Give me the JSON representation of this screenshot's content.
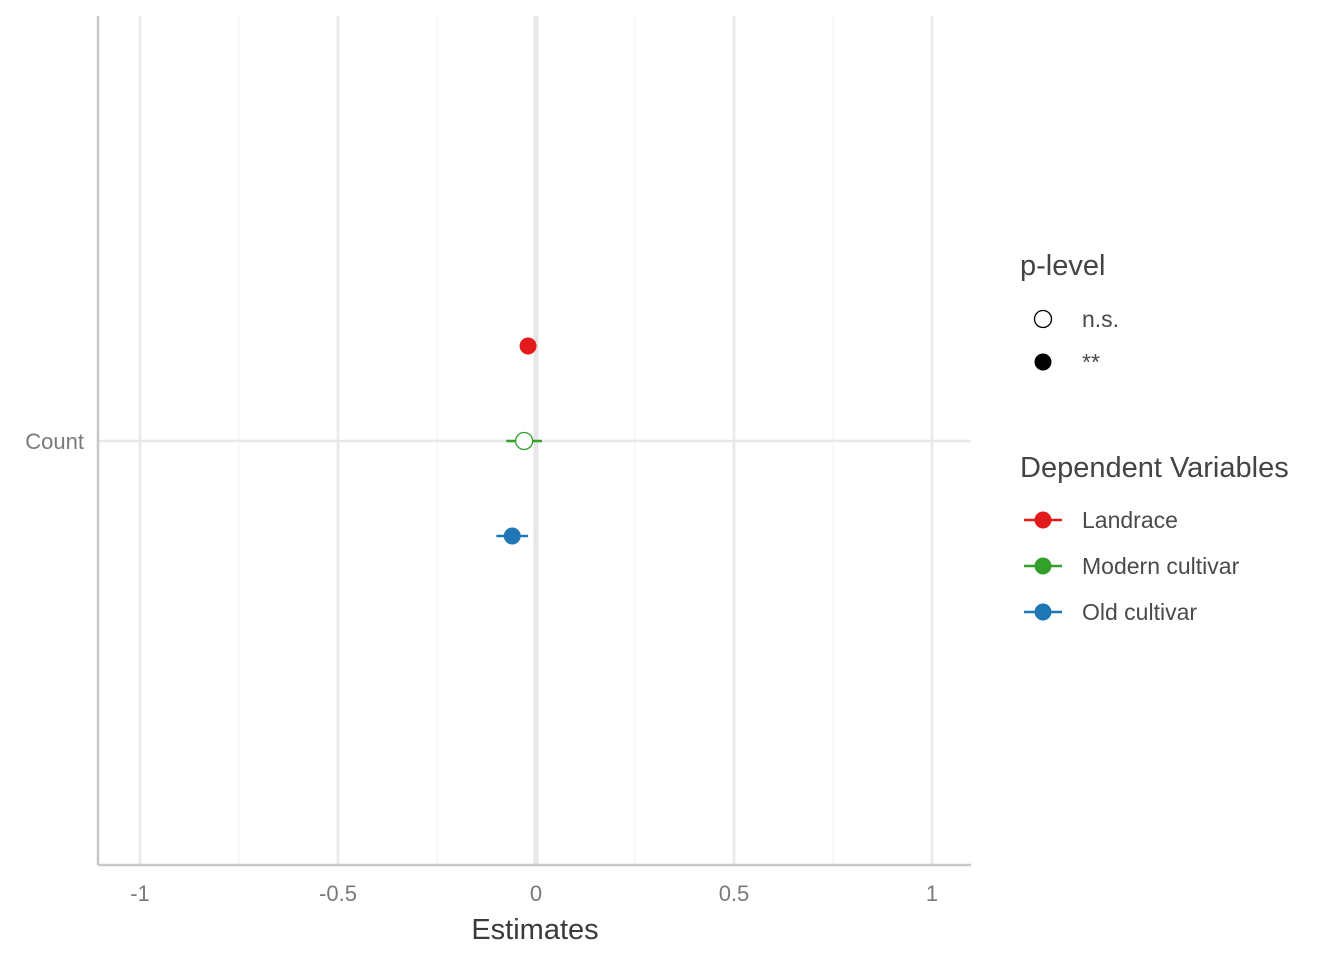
{
  "chart_data": {
    "type": "scatter",
    "subtype": "coefficient-plot",
    "title": "",
    "xlabel": "Estimates",
    "ylabel": "",
    "xlim": [
      -1.1,
      1.1
    ],
    "x_ticks": [
      -1,
      -0.5,
      0,
      0.5,
      1
    ],
    "x_tick_labels": [
      "-1",
      "-0.5",
      "0",
      "0.5",
      "1"
    ],
    "categories": [
      "Count"
    ],
    "grid": true,
    "reference_line": 0,
    "legend_position": "right",
    "series": [
      {
        "name": "Landrace",
        "color": "#e31a1c",
        "estimate": -0.02,
        "ci": [
          -0.03,
          -0.01
        ],
        "p_level": "**"
      },
      {
        "name": "Modern cultivar",
        "color": "#33a02c",
        "estimate": -0.03,
        "ci": [
          -0.075,
          0.015
        ],
        "p_level": "n.s."
      },
      {
        "name": "Old cultivar",
        "color": "#1f78b4",
        "estimate": -0.06,
        "ci": [
          -0.1,
          -0.02
        ],
        "p_level": "**"
      }
    ],
    "legends": {
      "p_level": {
        "title": "p-level",
        "items": [
          "n.s.",
          "**"
        ]
      },
      "dependent": {
        "title": "Dependent Variables",
        "items": [
          "Landrace",
          "Modern cultivar",
          "Old cultivar"
        ]
      }
    }
  }
}
